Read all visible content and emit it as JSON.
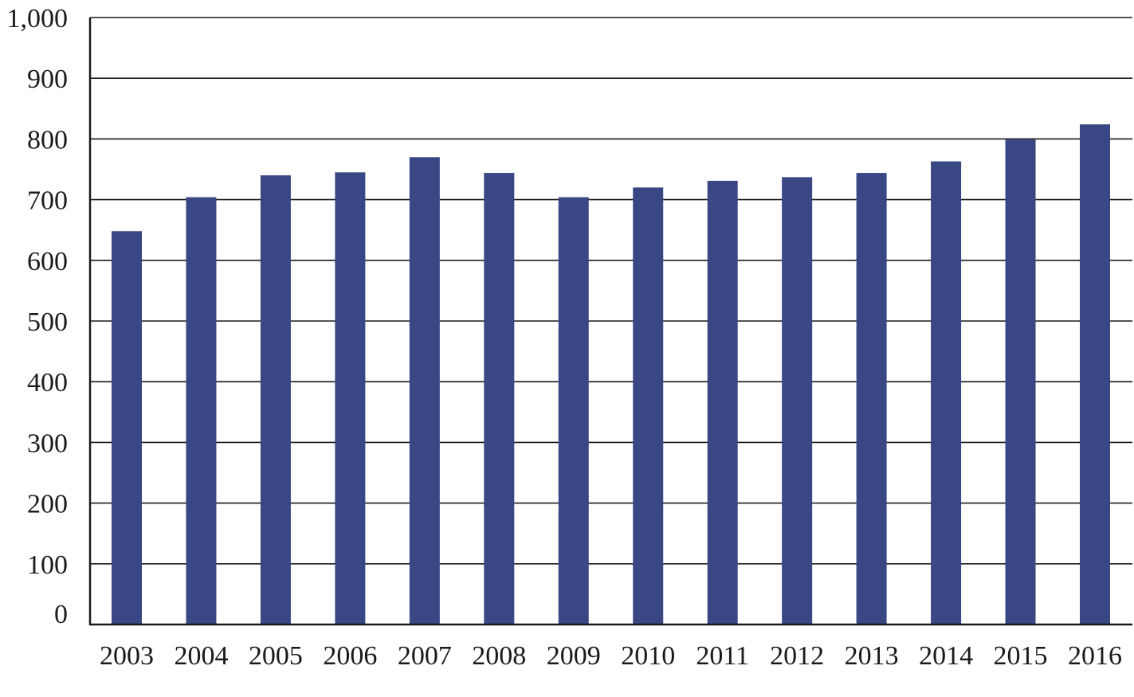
{
  "chart_data": {
    "type": "bar",
    "title": "",
    "xlabel": "",
    "ylabel": "",
    "categories": [
      "2003",
      "2004",
      "2005",
      "2006",
      "2007",
      "2008",
      "2009",
      "2010",
      "2011",
      "2012",
      "2013",
      "2014",
      "2015",
      "2016"
    ],
    "values": [
      648,
      704,
      740,
      745,
      770,
      744,
      704,
      720,
      731,
      737,
      744,
      763,
      799,
      824
    ],
    "ylim": [
      0,
      1000
    ],
    "y_ticks": [
      0,
      100,
      200,
      300,
      400,
      500,
      600,
      700,
      800,
      900,
      1000
    ],
    "y_tick_labels": [
      "0",
      "100",
      "200",
      "300",
      "400",
      "500",
      "600",
      "700",
      "800",
      "900",
      "1,000"
    ],
    "grid": true,
    "legend": "none",
    "bar_color": "#3a4785"
  }
}
